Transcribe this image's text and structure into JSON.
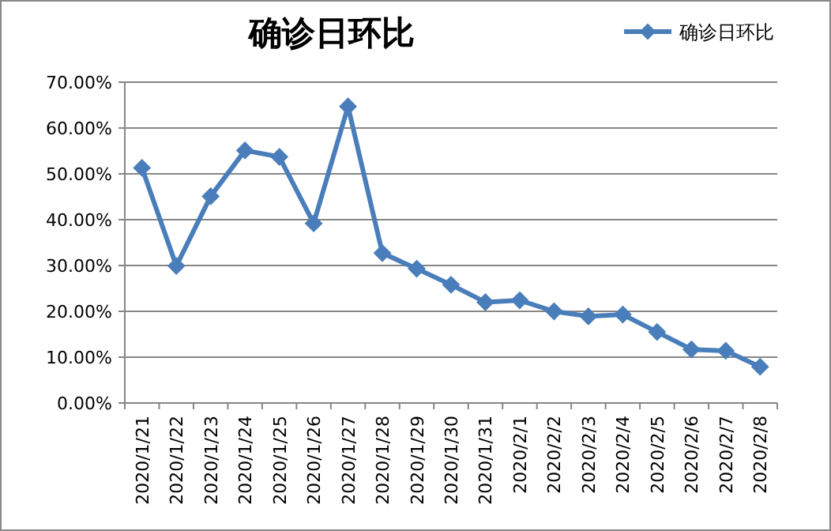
{
  "chart_data": {
    "type": "line",
    "title": "确诊日环比",
    "categories": [
      "2020/1/21",
      "2020/1/22",
      "2020/1/23",
      "2020/1/24",
      "2020/1/25",
      "2020/1/26",
      "2020/1/27",
      "2020/1/28",
      "2020/1/29",
      "2020/1/30",
      "2020/1/31",
      "2020/2/1",
      "2020/2/2",
      "2020/2/3",
      "2020/2/4",
      "2020/2/5",
      "2020/2/6",
      "2020/2/7",
      "2020/2/8"
    ],
    "series": [
      {
        "name": "确诊日环比",
        "color": "#4a7ebb",
        "values": [
          51.3,
          29.9,
          45.1,
          55.1,
          53.7,
          39.2,
          64.7,
          32.7,
          29.3,
          25.8,
          22.0,
          22.4,
          20.0,
          18.9,
          19.3,
          15.5,
          11.7,
          11.4,
          7.9
        ]
      }
    ],
    "ylim": [
      0,
      70
    ],
    "yticks": [
      {
        "value": 0,
        "label": "0.00%"
      },
      {
        "value": 10,
        "label": "10.00%"
      },
      {
        "value": 20,
        "label": "20.00%"
      },
      {
        "value": 30,
        "label": "30.00%"
      },
      {
        "value": 40,
        "label": "40.00%"
      },
      {
        "value": 50,
        "label": "50.00%"
      },
      {
        "value": 60,
        "label": "60.00%"
      },
      {
        "value": 70,
        "label": "70.00%"
      }
    ],
    "grid": "y",
    "legend": "top right",
    "marker": "diamond",
    "line_style": "solid"
  }
}
